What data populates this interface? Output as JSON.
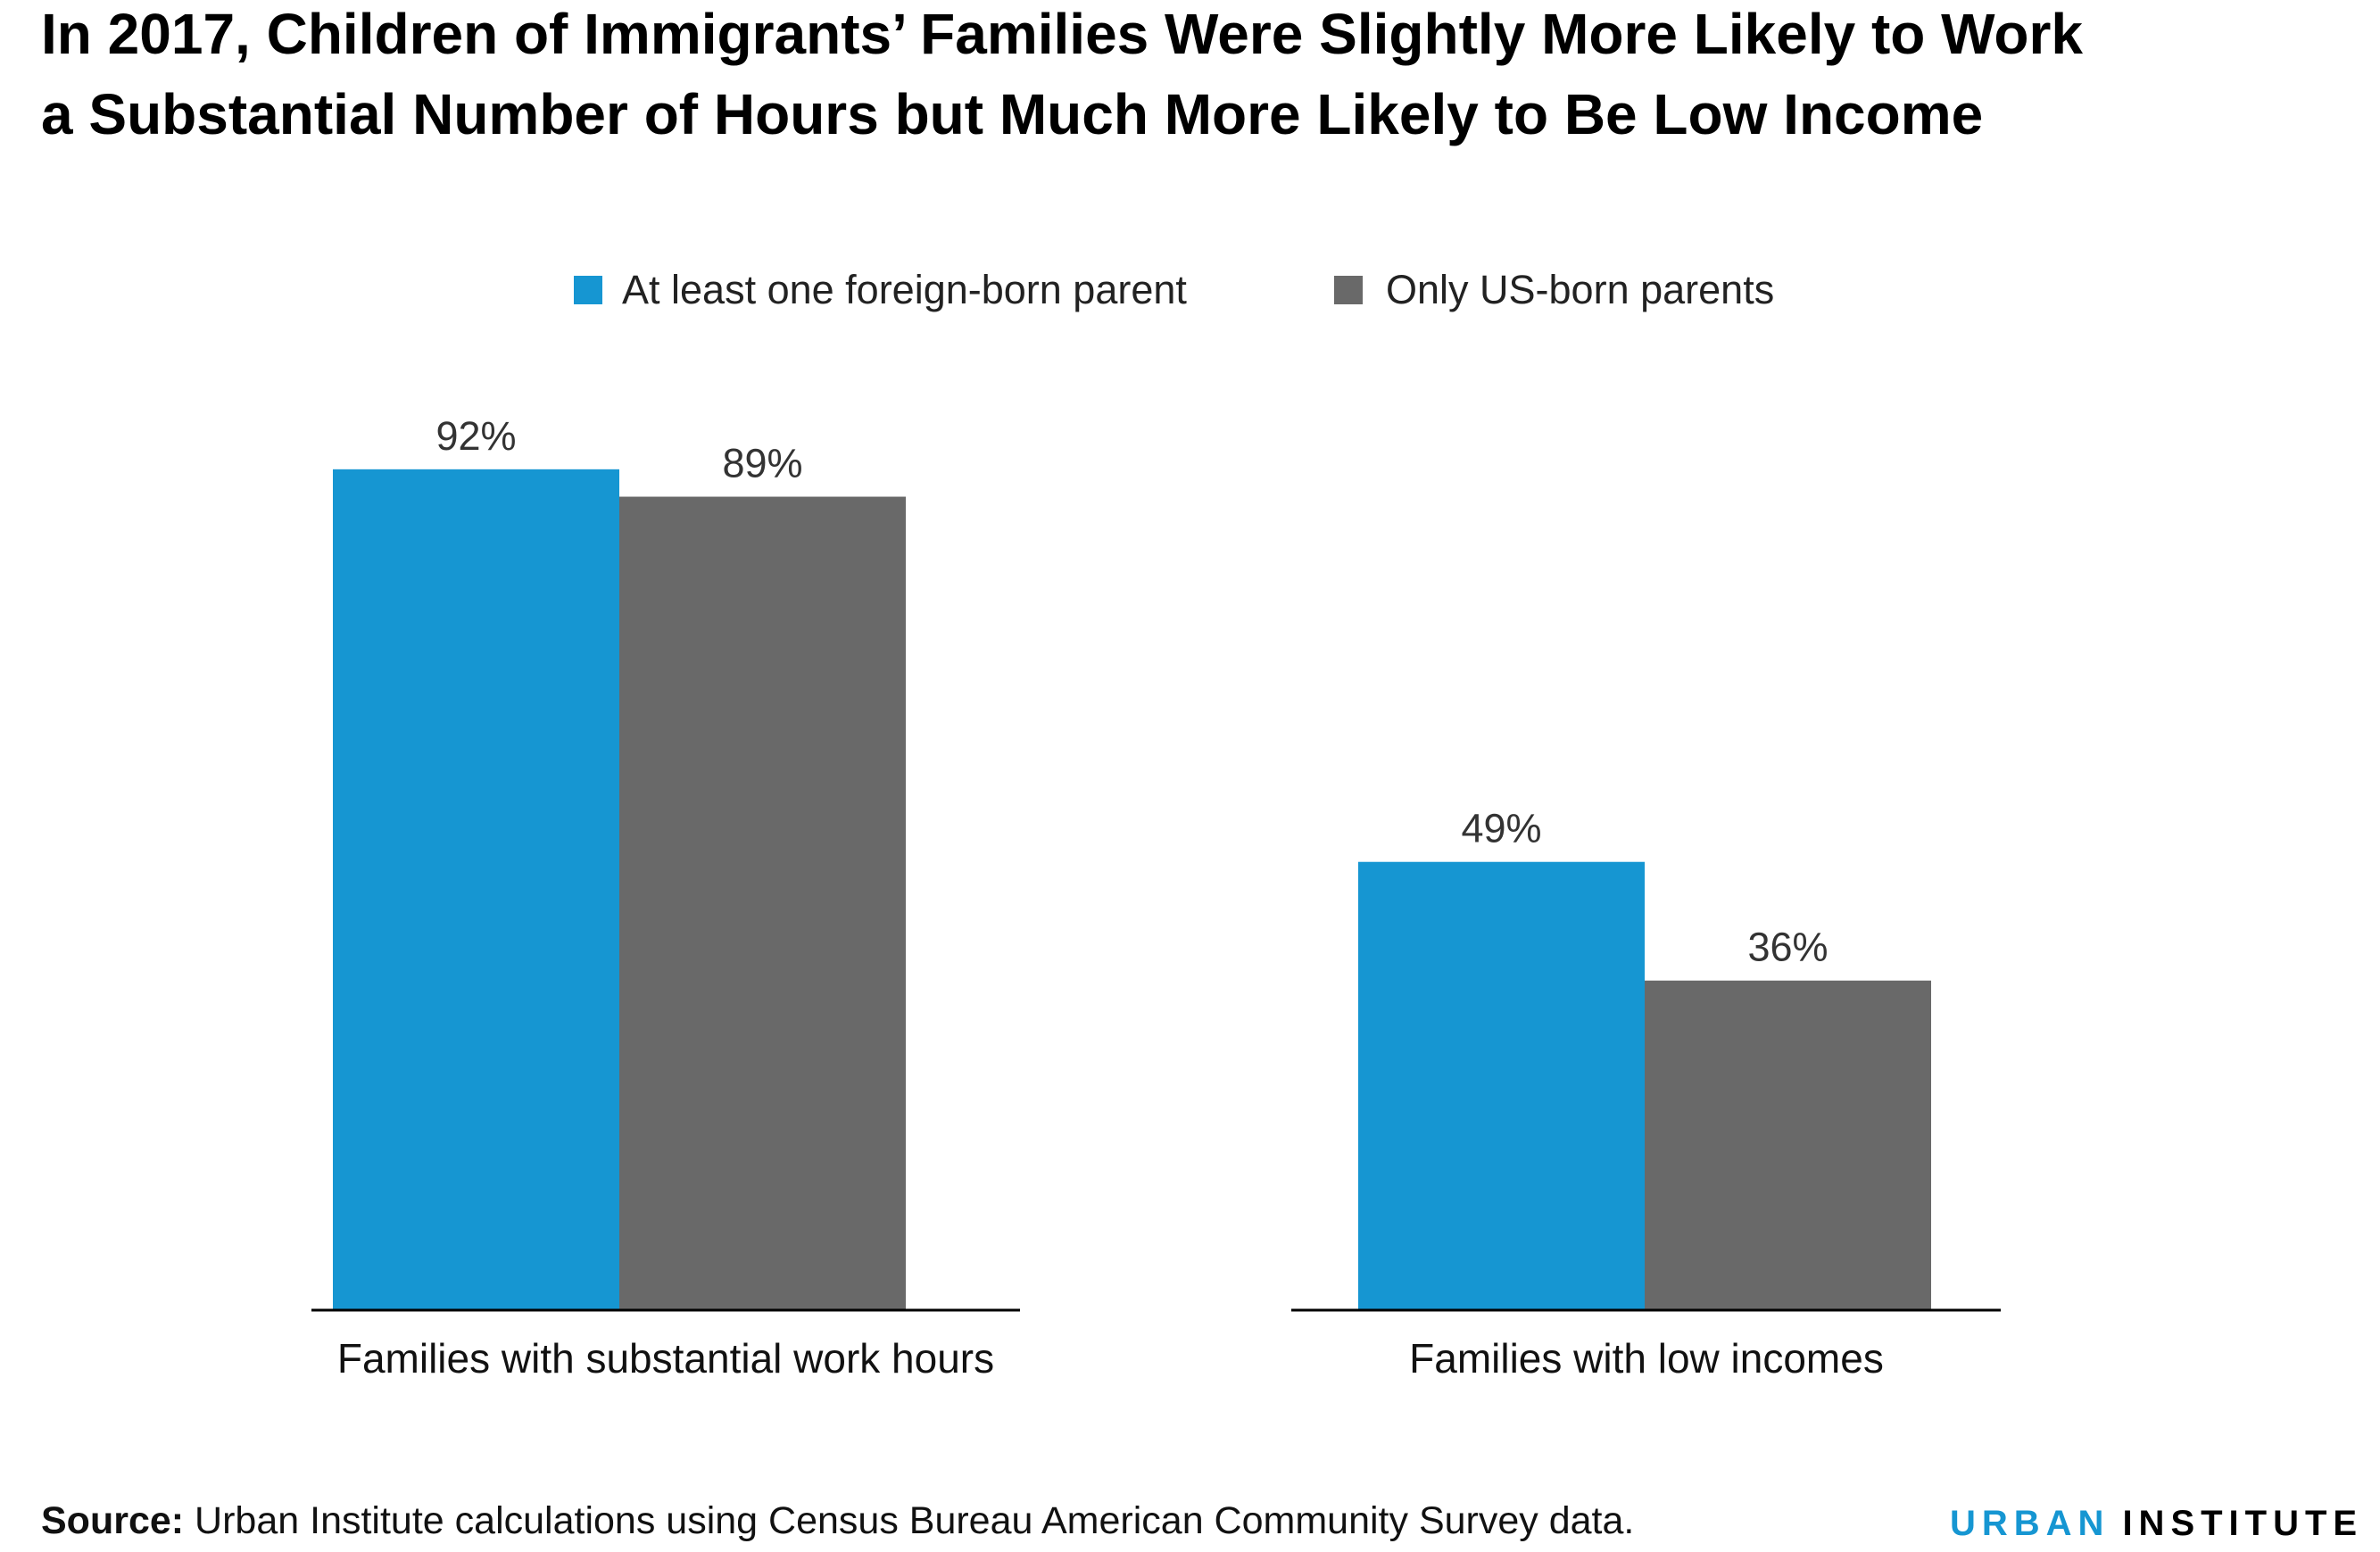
{
  "chart_data": {
    "type": "bar",
    "title": [
      "In 2017, Children of Immigrants’ Families Were Slightly More Likely to Work",
      "a Substantial Number of Hours but Much More Likely to Be Low Income"
    ],
    "categories": [
      "Families with substantial work hours",
      "Families with low incomes"
    ],
    "series": [
      {
        "name": "At least one foreign-born parent",
        "values": [
          92,
          49
        ],
        "labels": [
          "92%",
          "49%"
        ],
        "color": "#1696d2"
      },
      {
        "name": "Only US-born parents",
        "values": [
          89,
          36
        ],
        "labels": [
          "89%",
          "36%"
        ],
        "color": "#696969"
      }
    ],
    "ylim": [
      0,
      100
    ],
    "grid": false,
    "legend_position": "top-center",
    "xlabel": "",
    "ylabel": ""
  },
  "footer": {
    "source_label": "Source:",
    "source_text": " Urban Institute calculations using Census Bureau American Community Survey data.",
    "logo_part1": "URBAN",
    "logo_part2": "INSTITUTE"
  }
}
